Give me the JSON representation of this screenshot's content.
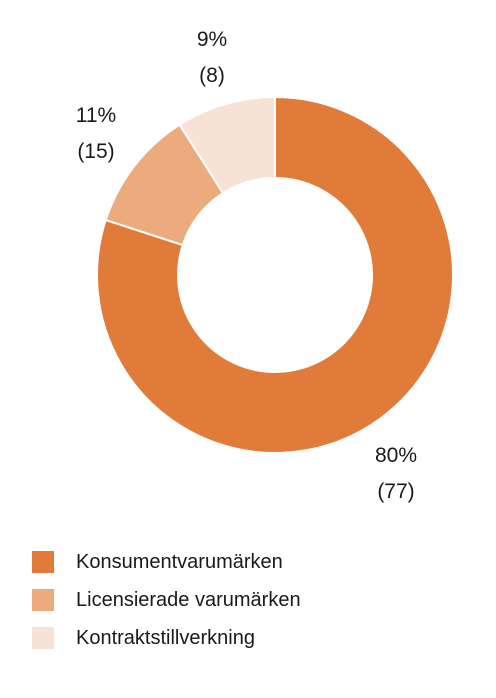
{
  "chart_data": {
    "type": "pie",
    "style": "donut",
    "series": [
      {
        "name": "Konsumentvarumärken",
        "value": 80,
        "count": 77,
        "label_pct": "80%",
        "label_count": "(77)",
        "color": "#e07b39"
      },
      {
        "name": "Licensierade varumärken",
        "value": 11,
        "count": 15,
        "label_pct": "11%",
        "label_count": "(15)",
        "color": "#ebab7d"
      },
      {
        "name": "Kontraktstillverkning",
        "value": 9,
        "count": 8,
        "label_pct": "9%",
        "label_count": "(8)",
        "color": "#f6e3d5"
      }
    ],
    "legend_position": "bottom-left"
  }
}
